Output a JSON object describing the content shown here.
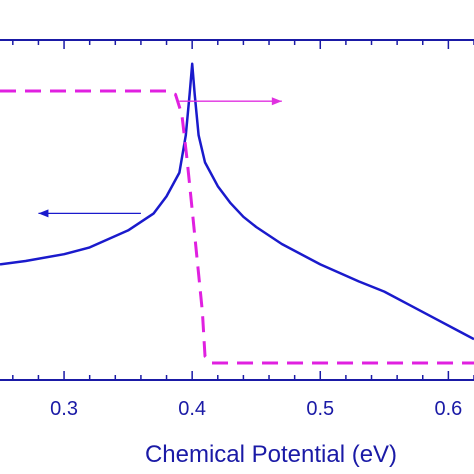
{
  "chart_data": {
    "type": "line",
    "xlabel": "Chemical Potential (eV)",
    "ylabel": "",
    "xlim": [
      0.25,
      0.62
    ],
    "xticks": [
      {
        "value": 0.3,
        "label": "0.3"
      },
      {
        "value": 0.4,
        "label": "0.4"
      },
      {
        "value": 0.5,
        "label": "0.5"
      },
      {
        "value": 0.6,
        "label": "0.6"
      }
    ],
    "grid": false,
    "legend": "none",
    "series": [
      {
        "axis": "left",
        "style": "solid",
        "color": "#1a1acc",
        "ylim": [
          0,
          1
        ],
        "x": [
          0.25,
          0.27,
          0.3,
          0.32,
          0.35,
          0.37,
          0.38,
          0.39,
          0.395,
          0.398,
          0.4,
          0.402,
          0.405,
          0.41,
          0.42,
          0.43,
          0.44,
          0.45,
          0.47,
          0.5,
          0.53,
          0.55,
          0.57,
          0.59,
          0.61,
          0.62
        ],
        "y": [
          0.34,
          0.35,
          0.37,
          0.39,
          0.44,
          0.49,
          0.54,
          0.61,
          0.72,
          0.84,
          0.93,
          0.84,
          0.72,
          0.64,
          0.57,
          0.52,
          0.48,
          0.45,
          0.4,
          0.34,
          0.29,
          0.26,
          0.22,
          0.18,
          0.14,
          0.12
        ]
      },
      {
        "axis": "right",
        "style": "dashed",
        "color": "#e020e0",
        "ylim": [
          0,
          1
        ],
        "x": [
          0.25,
          0.38,
          0.387,
          0.392,
          0.396,
          0.4,
          0.404,
          0.408,
          0.41,
          0.415,
          0.62
        ],
        "y": [
          0.85,
          0.85,
          0.84,
          0.78,
          0.65,
          0.5,
          0.35,
          0.2,
          0.07,
          0.05,
          0.05
        ]
      }
    ],
    "annotations": [
      {
        "type": "arrow",
        "direction": "left",
        "color": "#1a1acc",
        "from": [
          0.36,
          0.49
        ],
        "to": [
          0.28,
          0.49
        ]
      },
      {
        "type": "arrow",
        "direction": "right",
        "color": "#e030e0",
        "from": [
          0.39,
          0.82
        ],
        "to": [
          0.47,
          0.82
        ]
      }
    ]
  },
  "colors": {
    "axis": "#1a1aa6",
    "blue_series": "#1a1acc",
    "magenta_series": "#e020e0"
  }
}
